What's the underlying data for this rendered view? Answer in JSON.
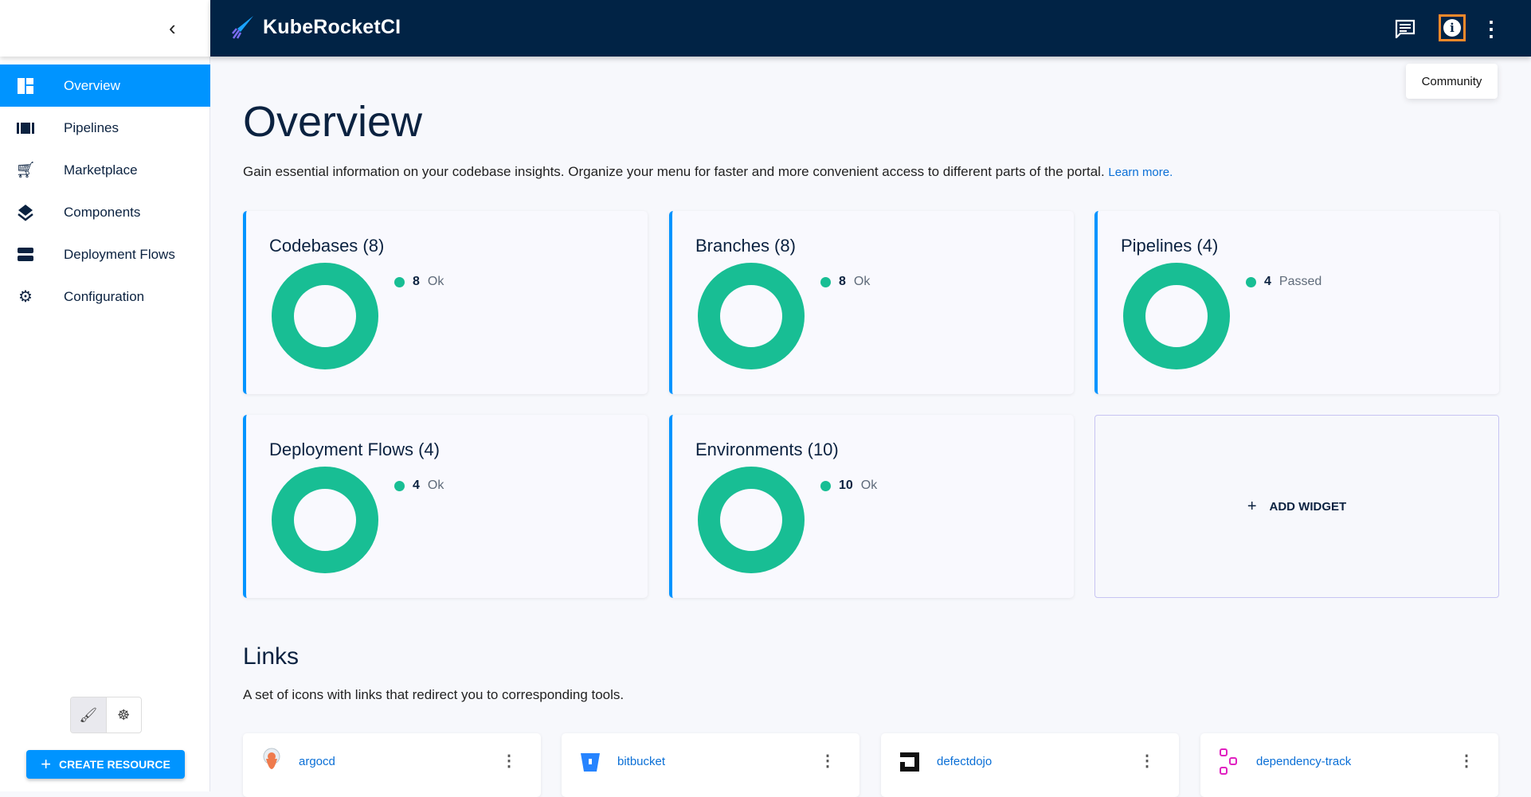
{
  "sidebar": {
    "collapse_icon": "chevron-left-icon",
    "items": [
      {
        "label": "Overview",
        "icon": "dashboard-icon",
        "active": true
      },
      {
        "label": "Pipelines",
        "icon": "pipelines-icon"
      },
      {
        "label": "Marketplace",
        "icon": "cart-icon"
      },
      {
        "label": "Components",
        "icon": "layers-icon"
      },
      {
        "label": "Deployment Flows",
        "icon": "storage-icon"
      },
      {
        "label": "Configuration",
        "icon": "gear-icon"
      }
    ],
    "create_label": "CREATE RESOURCE"
  },
  "header": {
    "title": "KubeRocketCI",
    "tooltip": "Community"
  },
  "main": {
    "title": "Overview",
    "description": "Gain essential information on your codebase insights. Organize your menu for faster and more convenient access to different parts of the portal.",
    "learn_more": "Learn more.",
    "widgets": [
      {
        "title": "Codebases (8)",
        "count": "8",
        "status": "Ok"
      },
      {
        "title": "Branches (8)",
        "count": "8",
        "status": "Ok"
      },
      {
        "title": "Pipelines (4)",
        "count": "4",
        "status": "Passed"
      },
      {
        "title": "Deployment Flows (4)",
        "count": "4",
        "status": "Ok"
      },
      {
        "title": "Environments (10)",
        "count": "10",
        "status": "Ok"
      }
    ],
    "add_widget": "ADD WIDGET",
    "links_title": "Links",
    "links_description": "A set of icons with links that redirect you to corresponding tools.",
    "links": [
      {
        "label": "argocd"
      },
      {
        "label": "bitbucket"
      },
      {
        "label": "defectdojo"
      },
      {
        "label": "dependency-track"
      }
    ]
  },
  "colors": {
    "header": "#012345",
    "accent": "#0094ff",
    "ok": "#18be94"
  }
}
